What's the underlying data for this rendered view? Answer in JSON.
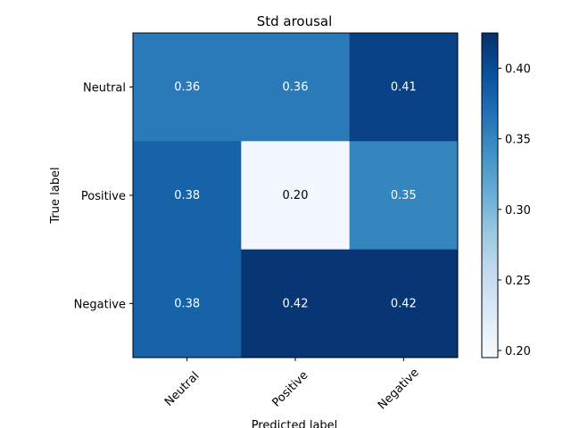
{
  "chart_data": {
    "type": "heatmap",
    "title": "Std arousal",
    "xlabel": "Predicted label",
    "ylabel": "True label",
    "x_categories": [
      "Neutral",
      "Positive",
      "Negative"
    ],
    "y_categories": [
      "Neutral",
      "Positive",
      "Negative"
    ],
    "values": [
      [
        0.36,
        0.36,
        0.41
      ],
      [
        0.38,
        0.2,
        0.35
      ],
      [
        0.38,
        0.42,
        0.42
      ]
    ],
    "value_labels": [
      [
        "0.36",
        "0.36",
        "0.41"
      ],
      [
        "0.38",
        "0.20",
        "0.35"
      ],
      [
        "0.38",
        "0.42",
        "0.42"
      ]
    ],
    "colorbar": {
      "range": [
        0.195,
        0.425
      ],
      "ticks": [
        "0.20",
        "0.25",
        "0.30",
        "0.35",
        "0.40"
      ],
      "tick_values": [
        0.2,
        0.25,
        0.3,
        0.35,
        0.4
      ]
    },
    "colormap": "Blues",
    "x_tick_rotation": 45
  }
}
